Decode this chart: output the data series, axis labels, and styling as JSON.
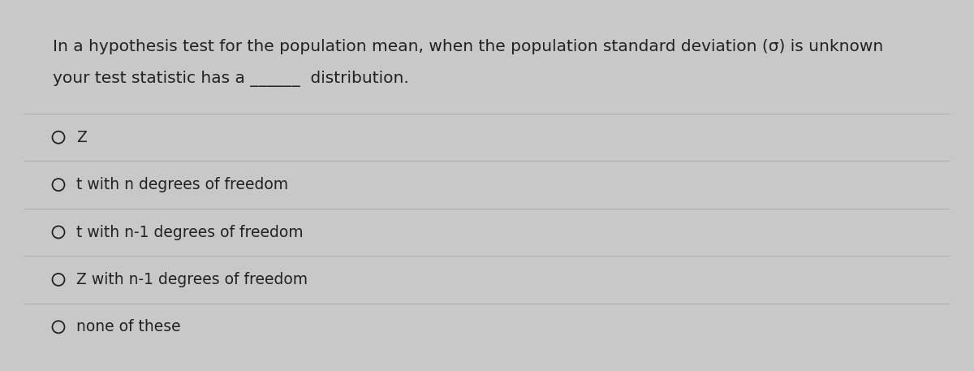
{
  "question_line1": "In a hypothesis test for the population mean, when the population standard deviation (σ) is unknown",
  "question_line2": "your test statistic has a ______  distribution.",
  "options": [
    "Z",
    "t with n degrees of freedom",
    "t with n-1 degrees of freedom",
    "Z with n-1 degrees of freedom",
    "none of these"
  ],
  "bg_color": "#c8c8c8",
  "card_color": "#e8e8e8",
  "text_color": "#222222",
  "line_color": "#b0b0b0",
  "border_color": "#999999",
  "question_fontsize": 14.5,
  "option_fontsize": 13.5,
  "fig_width": 12.0,
  "fig_height": 4.57,
  "dpi": 100
}
